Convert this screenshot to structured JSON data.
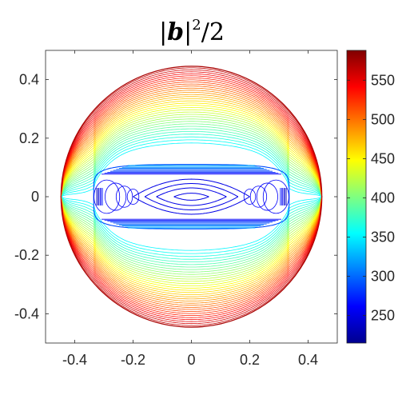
{
  "chart_data": {
    "type": "contour",
    "title_parts": {
      "open": "|",
      "vector": "b",
      "close": "|",
      "exponent": "2",
      "tail": "/2"
    },
    "xlim": [
      -0.5,
      0.5
    ],
    "ylim": [
      -0.5,
      0.5
    ],
    "x_ticks": [
      {
        "value": -0.4,
        "label": "-0.4"
      },
      {
        "value": -0.2,
        "label": "-0.2"
      },
      {
        "value": 0,
        "label": "0"
      },
      {
        "value": 0.2,
        "label": "0.2"
      },
      {
        "value": 0.4,
        "label": "0.4"
      }
    ],
    "y_ticks": [
      {
        "value": 0.4,
        "label": "0.4"
      },
      {
        "value": 0.2,
        "label": "0.2"
      },
      {
        "value": 0,
        "label": "0"
      },
      {
        "value": -0.2,
        "label": "-0.2"
      },
      {
        "value": -0.4,
        "label": "-0.4"
      }
    ],
    "colorbar": {
      "range": [
        215,
        588
      ],
      "colormap": "jet",
      "ticks": [
        {
          "value": 250,
          "label": "250"
        },
        {
          "value": 300,
          "label": "300"
        },
        {
          "value": 350,
          "label": "350"
        },
        {
          "value": 400,
          "label": "400"
        },
        {
          "value": 450,
          "label": "450"
        },
        {
          "value": 500,
          "label": "500"
        },
        {
          "value": 550,
          "label": "550"
        }
      ]
    },
    "domain_radius": 0.447,
    "inner_region": {
      "half_width": 0.335,
      "half_height": 0.11
    },
    "grid": false
  }
}
